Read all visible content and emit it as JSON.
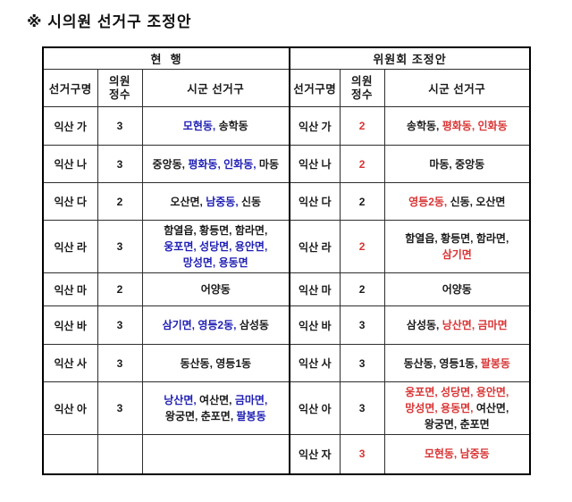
{
  "title": "※ 시의원 선거구 조정안",
  "colors": {
    "black": "#1a1a1a",
    "blue": "#1f1fb4",
    "red": "#d93434"
  },
  "table": {
    "sections": [
      {
        "id": "current",
        "title": "현  행"
      },
      {
        "id": "proposed",
        "title": "위원회 조정안"
      }
    ],
    "column_headers": {
      "district": "선거구명",
      "seats_line1": "의원",
      "seats_line2": "정수",
      "areas": "시군 선거구"
    },
    "rows": [
      {
        "current": {
          "district": "익산 가",
          "seats": "3",
          "seats_color": "black",
          "area_lines": [
            [
              {
                "t": "모현동,",
                "c": "blue"
              },
              {
                "t": " 송학동",
                "c": "black"
              }
            ]
          ]
        },
        "proposed": {
          "district": "익산 가",
          "seats": "2",
          "seats_color": "red",
          "area_lines": [
            [
              {
                "t": "송학동,",
                "c": "black"
              },
              {
                "t": " 평화동, 인화동",
                "c": "red"
              }
            ]
          ]
        }
      },
      {
        "current": {
          "district": "익산 나",
          "seats": "3",
          "seats_color": "black",
          "area_lines": [
            [
              {
                "t": "중앙동,",
                "c": "black"
              },
              {
                "t": " 평화동, 인화동,",
                "c": "blue"
              },
              {
                "t": " 마동",
                "c": "black"
              }
            ]
          ]
        },
        "proposed": {
          "district": "익산 나",
          "seats": "2",
          "seats_color": "red",
          "area_lines": [
            [
              {
                "t": "마동, 중앙동",
                "c": "black"
              }
            ]
          ]
        }
      },
      {
        "current": {
          "district": "익산 다",
          "seats": "2",
          "seats_color": "black",
          "area_lines": [
            [
              {
                "t": "오산면,",
                "c": "black"
              },
              {
                "t": " 남중동,",
                "c": "blue"
              },
              {
                "t": " 신동",
                "c": "black"
              }
            ]
          ]
        },
        "proposed": {
          "district": "익산 다",
          "seats": "2",
          "seats_color": "black",
          "area_lines": [
            [
              {
                "t": "영등2동,",
                "c": "red"
              },
              {
                "t": " 신동, 오산면",
                "c": "black"
              }
            ]
          ]
        }
      },
      {
        "current": {
          "district": "익산 라",
          "seats": "3",
          "seats_color": "black",
          "area_lines": [
            [
              {
                "t": "함열읍, 황등면, 함라면,",
                "c": "black"
              }
            ],
            [
              {
                "t": "웅포면, 성당면, 용안면,",
                "c": "blue"
              }
            ],
            [
              {
                "t": "망성면, 용동면",
                "c": "blue"
              }
            ]
          ]
        },
        "proposed": {
          "district": "익산 라",
          "seats": "2",
          "seats_color": "red",
          "area_lines": [
            [
              {
                "t": "함열읍, 황등면, 함라면,",
                "c": "black"
              }
            ],
            [
              {
                "t": "삼기면",
                "c": "red"
              }
            ]
          ]
        }
      },
      {
        "current": {
          "district": "익산 마",
          "seats": "2",
          "seats_color": "black",
          "area_lines": [
            [
              {
                "t": "어양동",
                "c": "black"
              }
            ]
          ]
        },
        "proposed": {
          "district": "익산 마",
          "seats": "2",
          "seats_color": "black",
          "area_lines": [
            [
              {
                "t": "어양동",
                "c": "black"
              }
            ]
          ]
        }
      },
      {
        "current": {
          "district": "익산 바",
          "seats": "3",
          "seats_color": "black",
          "area_lines": [
            [
              {
                "t": "삼기면, 영등2동,",
                "c": "blue"
              },
              {
                "t": " 삼성동",
                "c": "black"
              }
            ]
          ]
        },
        "proposed": {
          "district": "익산 바",
          "seats": "3",
          "seats_color": "black",
          "area_lines": [
            [
              {
                "t": "삼성동,",
                "c": "black"
              },
              {
                "t": " 낭산면, 금마면",
                "c": "red"
              }
            ]
          ]
        }
      },
      {
        "current": {
          "district": "익산 사",
          "seats": "3",
          "seats_color": "black",
          "area_lines": [
            [
              {
                "t": "동산동, 영등1동",
                "c": "black"
              }
            ]
          ]
        },
        "proposed": {
          "district": "익산 사",
          "seats": "3",
          "seats_color": "black",
          "area_lines": [
            [
              {
                "t": "동산동, 영등1동,",
                "c": "black"
              },
              {
                "t": " 팔봉동",
                "c": "red"
              }
            ]
          ]
        }
      },
      {
        "current": {
          "district": "익산 아",
          "seats": "3",
          "seats_color": "black",
          "area_lines": [
            [
              {
                "t": "낭산면,",
                "c": "blue"
              },
              {
                "t": " 여산면,",
                "c": "black"
              },
              {
                "t": " 금마면,",
                "c": "blue"
              }
            ],
            [
              {
                "t": "왕궁면, 춘포면,",
                "c": "black"
              },
              {
                "t": " 팔봉동",
                "c": "blue"
              }
            ]
          ]
        },
        "proposed": {
          "district": "익산 아",
          "seats": "3",
          "seats_color": "black",
          "area_lines": [
            [
              {
                "t": "웅포면, 성당면, 용안면,",
                "c": "red"
              }
            ],
            [
              {
                "t": "망성면, 용동면,",
                "c": "red"
              },
              {
                "t": " 여산면,",
                "c": "black"
              }
            ],
            [
              {
                "t": "왕궁면, 춘포면",
                "c": "black"
              }
            ]
          ]
        }
      },
      {
        "current": {
          "district": "",
          "seats": "",
          "seats_color": "black",
          "area_lines": []
        },
        "proposed": {
          "district": "익산 자",
          "seats": "3",
          "seats_color": "red",
          "area_lines": [
            [
              {
                "t": "모현동, 남중동",
                "c": "red"
              }
            ]
          ]
        }
      }
    ]
  }
}
